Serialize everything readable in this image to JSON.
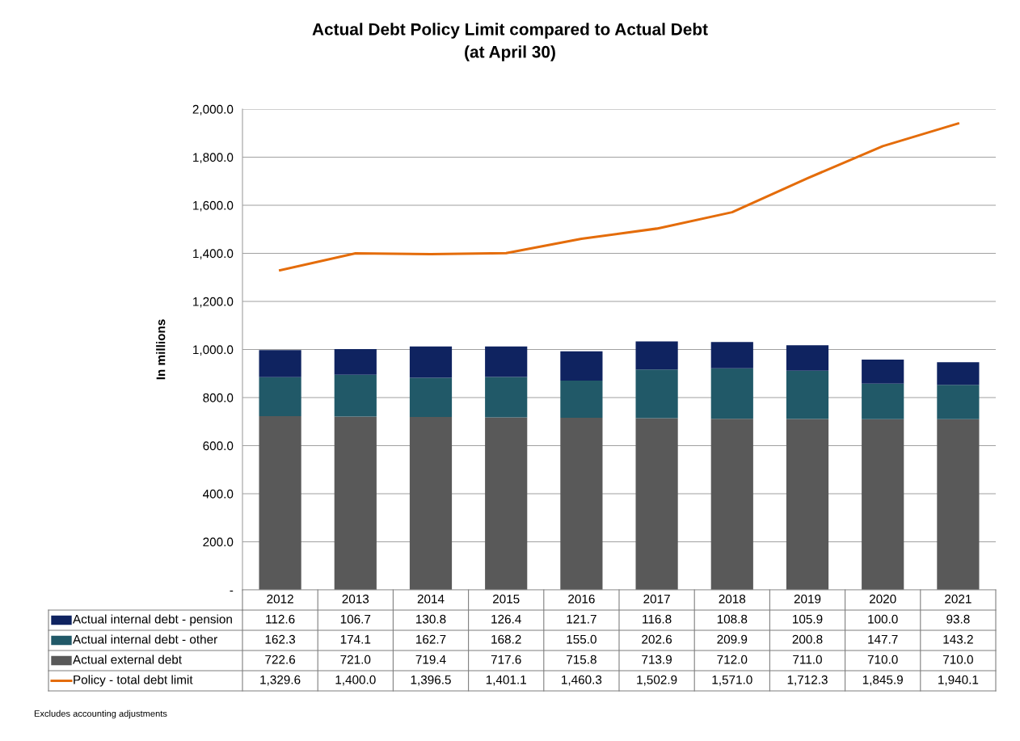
{
  "chart_data": {
    "type": "bar",
    "stacked": true,
    "title": "Actual Debt Policy Limit compared to Actual Debt",
    "subtitle": "(at April 30)",
    "ylabel": "In millions",
    "categories": [
      "2012",
      "2013",
      "2014",
      "2015",
      "2016",
      "2017",
      "2018",
      "2019",
      "2020",
      "2021"
    ],
    "series": [
      {
        "name": "Actual external debt",
        "color": "#595959",
        "values": [
          722.6,
          721.0,
          719.4,
          717.6,
          715.8,
          713.9,
          712.0,
          711.0,
          710.0,
          710.0
        ],
        "value_labels": [
          "722.6",
          "721.0",
          "719.4",
          "717.6",
          "715.8",
          "713.9",
          "712.0",
          "711.0",
          "710.0",
          "710.0"
        ]
      },
      {
        "name": "Actual internal debt - other",
        "color": "#215968",
        "values": [
          162.3,
          174.1,
          162.7,
          168.2,
          155.0,
          202.6,
          209.9,
          200.8,
          147.7,
          143.2
        ],
        "value_labels": [
          "162.3",
          "174.1",
          "162.7",
          "168.2",
          "155.0",
          "202.6",
          "209.9",
          "200.8",
          "147.7",
          "143.2"
        ]
      },
      {
        "name": "Actual internal debt - pension",
        "color": "#0f2360",
        "values": [
          112.6,
          106.7,
          130.8,
          126.4,
          121.7,
          116.8,
          108.8,
          105.9,
          100.0,
          93.8
        ],
        "value_labels": [
          "112.6",
          "106.7",
          "130.8",
          "126.4",
          "121.7",
          "116.8",
          "108.8",
          "105.9",
          "100.0",
          "93.8"
        ]
      },
      {
        "name": "Policy - total debt limit",
        "type": "line",
        "color": "#e46c0a",
        "values": [
          1329.6,
          1400.0,
          1396.5,
          1401.1,
          1460.3,
          1502.9,
          1571.0,
          1712.3,
          1845.9,
          1940.1
        ],
        "value_labels": [
          "1,329.6",
          "1,400.0",
          "1,396.5",
          "1,401.1",
          "1,460.3",
          "1,502.9",
          "1,571.0",
          "1,712.3",
          "1,845.9",
          "1,940.1"
        ]
      }
    ],
    "ylim": [
      0,
      2000
    ],
    "yticks": [
      {
        "value": 0,
        "label": "-"
      },
      {
        "value": 200,
        "label": "200.0"
      },
      {
        "value": 400,
        "label": "400.0"
      },
      {
        "value": 600,
        "label": "600.0"
      },
      {
        "value": 800,
        "label": "800.0"
      },
      {
        "value": 1000,
        "label": "1,000.0"
      },
      {
        "value": 1200,
        "label": "1,200.0"
      },
      {
        "value": 1400,
        "label": "1,400.0"
      },
      {
        "value": 1600,
        "label": "1,600.0"
      },
      {
        "value": 1800,
        "label": "1,800.0"
      },
      {
        "value": 2000,
        "label": "2,000.0"
      }
    ],
    "grid": "y",
    "legend": "bottom",
    "marker": "none",
    "line_style": "solid",
    "annotations": [
      "Excludes accounting adjustments"
    ]
  }
}
